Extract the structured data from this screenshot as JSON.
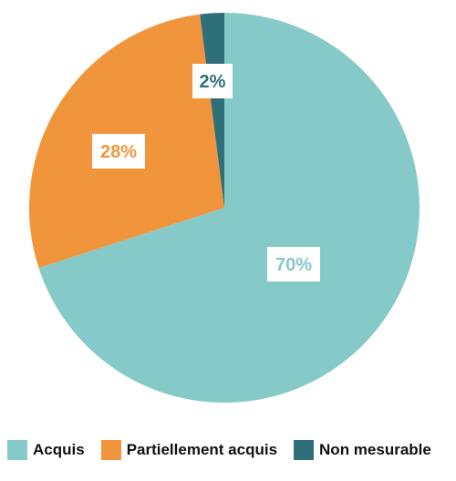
{
  "chart_data": {
    "type": "pie",
    "slices": [
      {
        "name": "Acquis",
        "value": 70,
        "label": "70%",
        "color": "#85CAC8"
      },
      {
        "name": "Partiellement acquis",
        "value": 28,
        "label": "28%",
        "color": "#F1953D"
      },
      {
        "name": "Non mesurable",
        "value": 2,
        "label": "2%",
        "color": "#2F6F79"
      }
    ],
    "start": "12 o'clock",
    "direction": "clockwise",
    "legend": {
      "placement": "bottom"
    }
  }
}
